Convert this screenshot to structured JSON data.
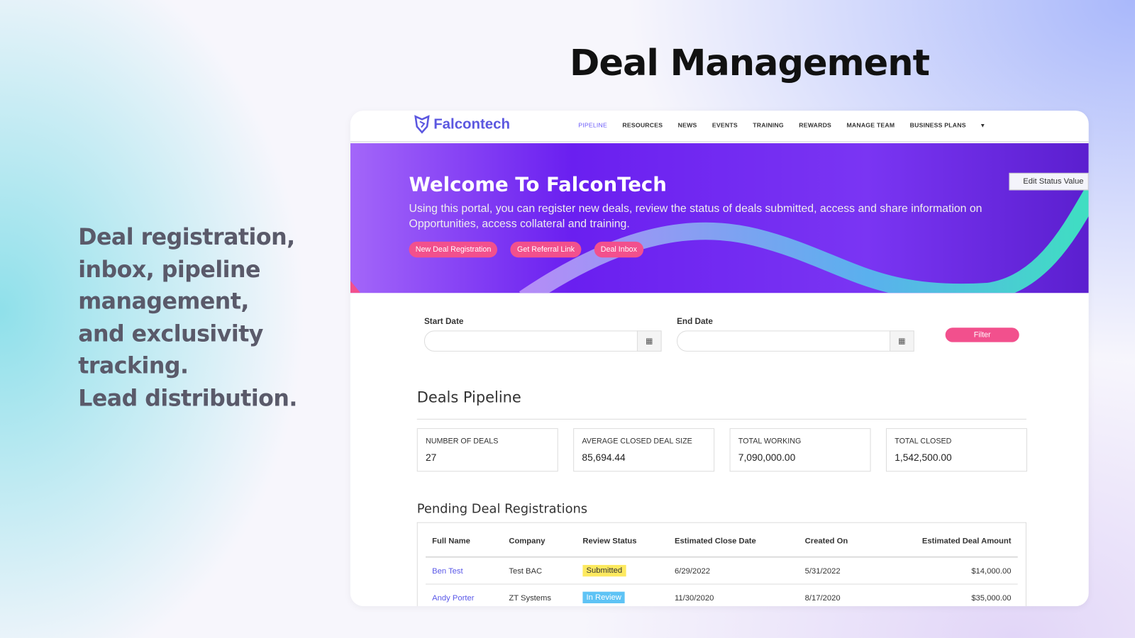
{
  "headline": "Deal Management",
  "tagline": "Deal registration,\ninbox, pipeline\nmanagement,\nand exclusivity\ntracking.\nLead distribution.",
  "app": {
    "logo": "Falcontech",
    "nav": [
      "PIPELINE",
      "RESOURCES",
      "NEWS",
      "EVENTS",
      "TRAINING",
      "REWARDS",
      "MANAGE TEAM",
      "BUSINESS PLANS"
    ],
    "active_nav": "PIPELINE"
  },
  "hero": {
    "title": "Welcome To FalconTech",
    "text": "Using this portal, you can register new deals, review the status of deals submitted, access and share information on Opportunities, access collateral and training.",
    "buttons": [
      "New Deal Registration",
      "Get Referral Link",
      "Deal Inbox"
    ],
    "edit_label": "Edit Status Value"
  },
  "filters": {
    "start_label": "Start Date",
    "start_value": "",
    "end_label": "End Date",
    "end_value": "",
    "filter_label": "Filter"
  },
  "pipeline": {
    "title": "Deals Pipeline",
    "cards": [
      {
        "label": "NUMBER OF DEALS",
        "value": "27"
      },
      {
        "label": "AVERAGE CLOSED DEAL SIZE",
        "value": "85,694.44"
      },
      {
        "label": "TOTAL WORKING",
        "value": "7,090,000.00"
      },
      {
        "label": "TOTAL CLOSED",
        "value": "1,542,500.00"
      }
    ]
  },
  "pending": {
    "title": "Pending Deal Registrations",
    "columns": [
      "Full Name",
      "Company",
      "Review Status",
      "Estimated Close Date",
      "Created On",
      "Estimated Deal Amount"
    ],
    "rows": [
      {
        "name": "Ben Test",
        "company": "Test BAC",
        "status": "Submitted",
        "close": "6/29/2022",
        "created": "5/31/2022",
        "amount": "$14,000.00"
      },
      {
        "name": "Andy Porter",
        "company": "ZT Systems",
        "status": "In Review",
        "close": "11/30/2020",
        "created": "8/17/2020",
        "amount": "$35,000.00"
      }
    ]
  },
  "colors": {
    "accent": "#f2508d",
    "brand": "#5b57e0",
    "submitted": "#fde95f",
    "in_review": "#5ec3f5"
  }
}
